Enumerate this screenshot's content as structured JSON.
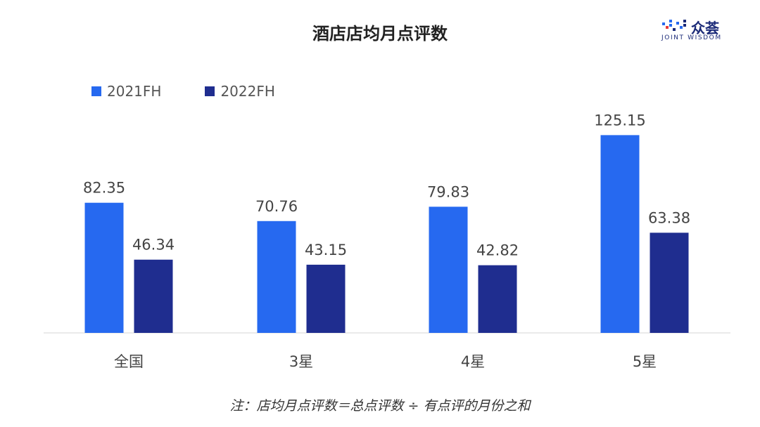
{
  "logo": {
    "brand": "众荟",
    "sub": "JOINT WISDOM",
    "icon": "joint-wisdom-logo-icon"
  },
  "footnote": "注：店均月点评数＝总点评数 ÷  有点评的月份之和",
  "chart_data": {
    "type": "bar",
    "title": "酒店店均月点评数",
    "categories": [
      "全国",
      "3星",
      "4星",
      "5星"
    ],
    "series": [
      {
        "name": "2021FH",
        "color": "#2669f0",
        "values": [
          82.35,
          70.76,
          79.83,
          125.15
        ]
      },
      {
        "name": "2022FH",
        "color": "#1f2d8f",
        "values": [
          46.34,
          43.15,
          42.82,
          63.38
        ]
      }
    ],
    "ylim": [
      0,
      130
    ],
    "grid": false,
    "legend_position": "top-left",
    "xlabel": "",
    "ylabel": ""
  }
}
